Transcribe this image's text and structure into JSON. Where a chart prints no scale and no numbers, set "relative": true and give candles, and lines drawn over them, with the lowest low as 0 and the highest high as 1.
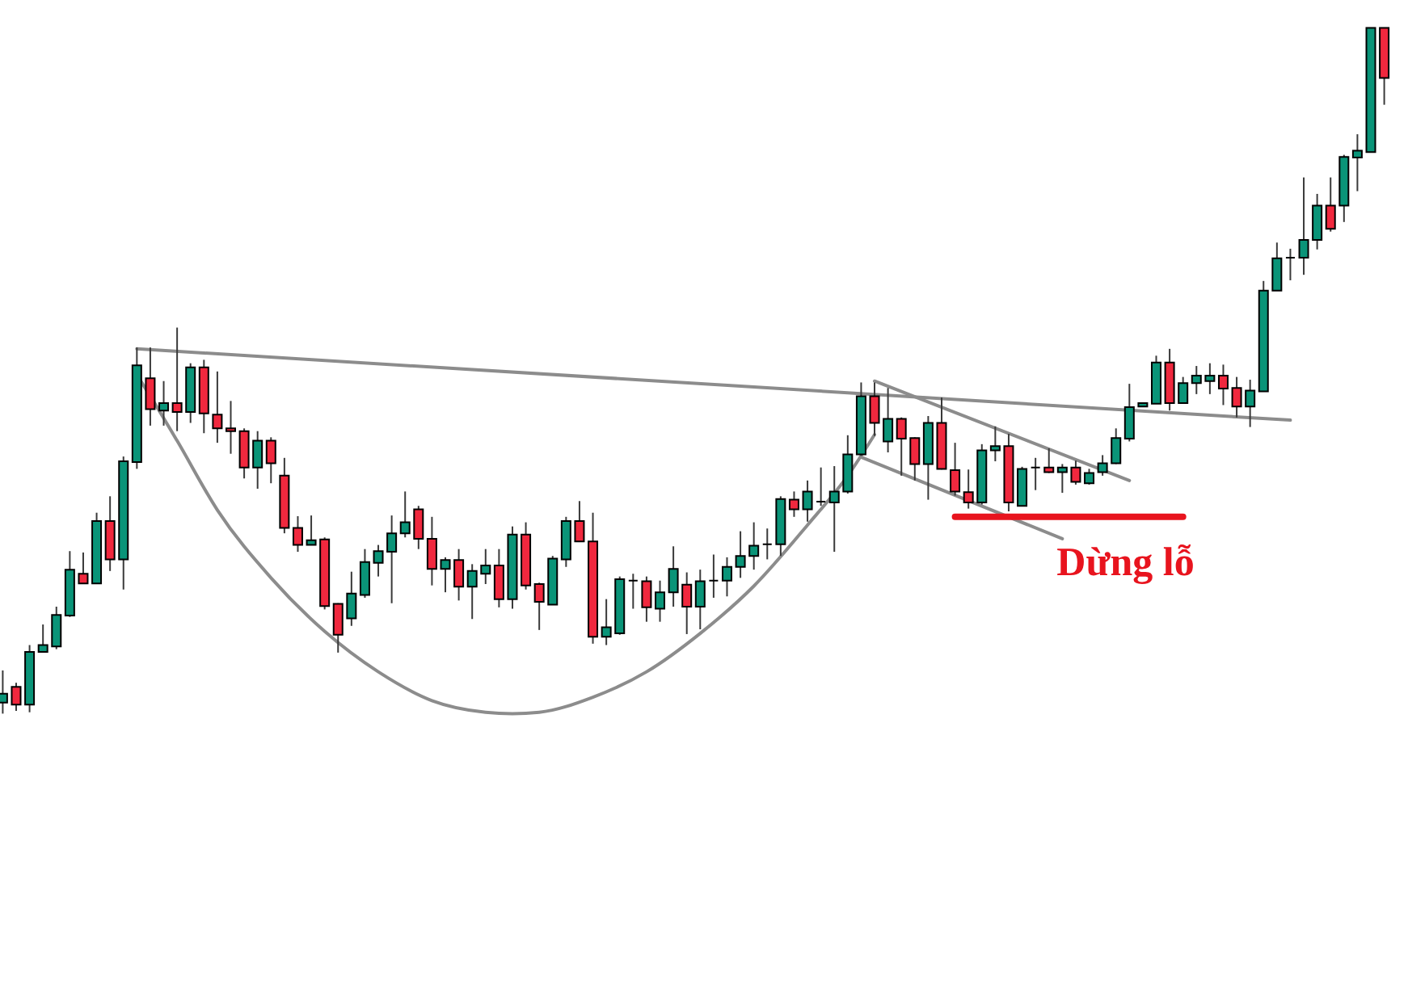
{
  "chart_data": {
    "type": "candlestick",
    "relative": true,
    "tick_labels": false,
    "categories": [
      null,
      null,
      null,
      null,
      null,
      null,
      null,
      null,
      null,
      null,
      null,
      null,
      null,
      null,
      null,
      null,
      null,
      null,
      null,
      null,
      null,
      null,
      null,
      null,
      null,
      null,
      null,
      null,
      null,
      null,
      null,
      null,
      null,
      null,
      null,
      null,
      null,
      null,
      null,
      null,
      null,
      null,
      null,
      null,
      null,
      null,
      null,
      null,
      null,
      null,
      null,
      null,
      null,
      null,
      null,
      null,
      null,
      null,
      null,
      null,
      null,
      null,
      null,
      null,
      null,
      null,
      null,
      null,
      null,
      null,
      null,
      null,
      null,
      null,
      null,
      null,
      null,
      null,
      null,
      null,
      null,
      null,
      null,
      null,
      null,
      null,
      null,
      null,
      null,
      null,
      null,
      null,
      null,
      null,
      null,
      null,
      null,
      null,
      null,
      null,
      null,
      null,
      null,
      null
    ],
    "ohlc": [
      [
        0.016,
        0.063,
        0,
        0.029
      ],
      [
        0.039,
        0.045,
        0.004,
        0.013
      ],
      [
        0.013,
        0.1,
        0.002,
        0.09
      ],
      [
        0.09,
        0.13,
        0.089,
        0.1
      ],
      [
        0.098,
        0.156,
        0.094,
        0.144
      ],
      [
        0.143,
        0.237,
        0.141,
        0.21
      ],
      [
        0.204,
        0.235,
        0.19,
        0.19
      ],
      [
        0.19,
        0.293,
        0.19,
        0.281
      ],
      [
        0.281,
        0.317,
        0.208,
        0.225
      ],
      [
        0.225,
        0.375,
        0.181,
        0.368
      ],
      [
        0.367,
        0.534,
        0.357,
        0.508
      ],
      [
        0.489,
        0.534,
        0.42,
        0.444
      ],
      [
        0.442,
        0.485,
        0.42,
        0.453
      ],
      [
        0.453,
        0.563,
        0.412,
        0.44
      ],
      [
        0.44,
        0.511,
        0.424,
        0.505
      ],
      [
        0.505,
        0.516,
        0.409,
        0.438
      ],
      [
        0.436,
        0.499,
        0.395,
        0.416
      ],
      [
        0.416,
        0.456,
        0.379,
        0.412
      ],
      [
        0.412,
        0.416,
        0.343,
        0.359
      ],
      [
        0.359,
        0.412,
        0.328,
        0.398
      ],
      [
        0.398,
        0.403,
        0.336,
        0.365
      ],
      [
        0.347,
        0.373,
        0.263,
        0.271
      ],
      [
        0.271,
        0.288,
        0.236,
        0.246
      ],
      [
        0.246,
        0.289,
        0.246,
        0.253
      ],
      [
        0.254,
        0.257,
        0.152,
        0.157
      ],
      [
        0.16,
        0.161,
        0.089,
        0.115
      ],
      [
        0.139,
        0.207,
        0.128,
        0.175
      ],
      [
        0.173,
        0.24,
        0.169,
        0.221
      ],
      [
        0.22,
        0.246,
        0.2,
        0.237
      ],
      [
        0.236,
        0.289,
        0.161,
        0.263
      ],
      [
        0.263,
        0.324,
        0.257,
        0.279
      ],
      [
        0.298,
        0.303,
        0.24,
        0.255
      ],
      [
        0.255,
        0.287,
        0.187,
        0.211
      ],
      [
        0.211,
        0.228,
        0.177,
        0.224
      ],
      [
        0.224,
        0.24,
        0.165,
        0.185
      ],
      [
        0.185,
        0.218,
        0.138,
        0.208
      ],
      [
        0.204,
        0.24,
        0.189,
        0.216
      ],
      [
        0.216,
        0.24,
        0.155,
        0.167
      ],
      [
        0.167,
        0.273,
        0.153,
        0.261
      ],
      [
        0.261,
        0.279,
        0.181,
        0.187
      ],
      [
        0.189,
        0.191,
        0.122,
        0.163
      ],
      [
        0.159,
        0.23,
        0.159,
        0.226
      ],
      [
        0.225,
        0.287,
        0.214,
        0.281
      ],
      [
        0.281,
        0.31,
        0.251,
        0.251
      ],
      [
        0.251,
        0.293,
        0.102,
        0.112
      ],
      [
        0.112,
        0.167,
        0.1,
        0.126
      ],
      [
        0.117,
        0.2,
        0.115,
        0.196
      ],
      [
        0.194,
        0.204,
        0.153,
        0.194
      ],
      [
        0.193,
        0.2,
        0.134,
        0.155
      ],
      [
        0.153,
        0.194,
        0.134,
        0.177
      ],
      [
        0.177,
        0.244,
        0.156,
        0.211
      ],
      [
        0.188,
        0.206,
        0.116,
        0.156
      ],
      [
        0.156,
        0.21,
        0.123,
        0.193
      ],
      [
        0.194,
        0.232,
        0.169,
        0.194
      ],
      [
        0.194,
        0.228,
        0.171,
        0.214
      ],
      [
        0.214,
        0.266,
        0.198,
        0.23
      ],
      [
        0.23,
        0.279,
        0.21,
        0.245
      ],
      [
        0.247,
        0.27,
        0.225,
        0.247
      ],
      [
        0.247,
        0.317,
        0.23,
        0.313
      ],
      [
        0.312,
        0.324,
        0.287,
        0.298
      ],
      [
        0.298,
        0.34,
        0.28,
        0.324
      ],
      [
        0.309,
        0.359,
        0.303,
        0.309
      ],
      [
        0.308,
        0.361,
        0.236,
        0.324
      ],
      [
        0.324,
        0.406,
        0.321,
        0.378
      ],
      [
        0.378,
        0.483,
        0.376,
        0.463
      ],
      [
        0.463,
        0.483,
        0.405,
        0.424
      ],
      [
        0.397,
        0.475,
        0.381,
        0.43
      ],
      [
        0.43,
        0.432,
        0.347,
        0.401
      ],
      [
        0.402,
        0.403,
        0.34,
        0.364
      ],
      [
        0.364,
        0.434,
        0.312,
        0.424
      ],
      [
        0.424,
        0.461,
        0.356,
        0.357
      ],
      [
        0.355,
        0.395,
        0.318,
        0.324
      ],
      [
        0.323,
        0.356,
        0.299,
        0.308
      ],
      [
        0.308,
        0.393,
        0.305,
        0.384
      ],
      [
        0.384,
        0.419,
        0.368,
        0.39
      ],
      [
        0.39,
        0.408,
        0.295,
        0.308
      ],
      [
        0.303,
        0.36,
        0.303,
        0.357
      ],
      [
        0.359,
        0.373,
        0.326,
        0.359
      ],
      [
        0.359,
        0.387,
        0.351,
        0.352
      ],
      [
        0.352,
        0.364,
        0.322,
        0.359
      ],
      [
        0.359,
        0.369,
        0.334,
        0.338
      ],
      [
        0.336,
        0.357,
        0.334,
        0.351
      ],
      [
        0.352,
        0.377,
        0.347,
        0.365
      ],
      [
        0.365,
        0.416,
        0.364,
        0.402
      ],
      [
        0.401,
        0.481,
        0.397,
        0.447
      ],
      [
        0.448,
        0.453,
        0.448,
        0.453
      ],
      [
        0.452,
        0.522,
        0.452,
        0.512
      ],
      [
        0.512,
        0.532,
        0.442,
        0.453
      ],
      [
        0.453,
        0.491,
        0.452,
        0.482
      ],
      [
        0.482,
        0.507,
        0.466,
        0.493
      ],
      [
        0.485,
        0.511,
        0.466,
        0.493
      ],
      [
        0.493,
        0.509,
        0.45,
        0.474
      ],
      [
        0.475,
        0.491,
        0.432,
        0.448
      ],
      [
        0.448,
        0.487,
        0.418,
        0.471
      ],
      [
        0.47,
        0.631,
        0.47,
        0.617
      ],
      [
        0.617,
        0.687,
        0.617,
        0.664
      ],
      [
        0.665,
        0.678,
        0.632,
        0.665
      ],
      [
        0.665,
        0.782,
        0.64,
        0.691
      ],
      [
        0.691,
        0.758,
        0.677,
        0.741
      ],
      [
        0.741,
        0.782,
        0.703,
        0.707
      ],
      [
        0.741,
        0.815,
        0.717,
        0.812
      ],
      [
        0.811,
        0.845,
        0.762,
        0.821
      ],
      [
        0.819,
        1,
        0.819,
        1
      ],
      [
        1,
        1,
        0.888,
        0.927
      ]
    ],
    "colors": [
      "#0a9478",
      "#f0283e",
      "#0a9478",
      "#0a9478",
      "#0a9478",
      "#0a9478",
      "#f0283e",
      "#0a9478",
      "#f0283e",
      "#0a9478",
      "#0a9478",
      "#f0283e",
      "#0a9478",
      "#f0283e",
      "#0a9478",
      "#f0283e",
      "#f0283e",
      "#f0283e",
      "#f0283e",
      "#0a9478",
      "#f0283e",
      "#f0283e",
      "#f0283e",
      "#0a9478",
      "#f0283e",
      "#f0283e",
      "#0a9478",
      "#0a9478",
      "#0a9478",
      "#0a9478",
      "#0a9478",
      "#f0283e",
      "#f0283e",
      "#0a9478",
      "#f0283e",
      "#0a9478",
      "#0a9478",
      "#f0283e",
      "#0a9478",
      "#f0283e",
      "#f0283e",
      "#0a9478",
      "#0a9478",
      "#f0283e",
      "#f0283e",
      "#0a9478",
      "#0a9478",
      "#000000",
      "#f0283e",
      "#0a9478",
      "#0a9478",
      "#f0283e",
      "#0a9478",
      "#000000",
      "#0a9478",
      "#0a9478",
      "#0a9478",
      "#000000",
      "#0a9478",
      "#f0283e",
      "#0a9478",
      "#000000",
      "#0a9478",
      "#0a9478",
      "#0a9478",
      "#f0283e",
      "#0a9478",
      "#f0283e",
      "#f0283e",
      "#0a9478",
      "#f0283e",
      "#f0283e",
      "#f0283e",
      "#0a9478",
      "#0a9478",
      "#f0283e",
      "#0a9478",
      "#000000",
      "#f0283e",
      "#0a9478",
      "#f0283e",
      "#0a9478",
      "#0a9478",
      "#0a9478",
      "#0a9478",
      "#0a9478",
      "#0a9478",
      "#f0283e",
      "#0a9478",
      "#0a9478",
      "#0a9478",
      "#f0283e",
      "#f0283e",
      "#0a9478",
      "#0a9478",
      "#0a9478",
      "#000000",
      "#0a9478",
      "#0a9478",
      "#f0283e",
      "#0a9478",
      "#0a9478",
      "#0a9478",
      "#f0283e"
    ],
    "series": [
      {
        "type": "line",
        "color": "#8c8c8c",
        "values": [
          null,
          null,
          null,
          null,
          null,
          null,
          null,
          null,
          null,
          null,
          0.532,
          null,
          null,
          null,
          null,
          null,
          null,
          null,
          null,
          null,
          null,
          null,
          null,
          null,
          null,
          null,
          null,
          null,
          null,
          null,
          null,
          null,
          null,
          null,
          null,
          null,
          null,
          null,
          null,
          null,
          null,
          null,
          null,
          null,
          null,
          null,
          null,
          null,
          null,
          null,
          null,
          null,
          null,
          null,
          null,
          null,
          null,
          null,
          null,
          null,
          null,
          null,
          null,
          null,
          null,
          null,
          null,
          null,
          null,
          null,
          null,
          null,
          null,
          null,
          null,
          null,
          null,
          null,
          null,
          null,
          null,
          null,
          null,
          null,
          null,
          null,
          null,
          null,
          null,
          null,
          null,
          null,
          null,
          null,
          null,
          null,
          0.428,
          null,
          null,
          null,
          null,
          null,
          null,
          null
        ]
      },
      {
        "type": "line",
        "color": "#8c8c8c",
        "values": [
          null,
          null,
          null,
          null,
          null,
          null,
          null,
          null,
          null,
          null,
          0.494,
          0.463,
          null,
          0.398,
          null,
          null,
          0.297,
          null,
          null,
          null,
          0.198,
          null,
          null,
          null,
          0.12,
          null,
          null,
          null,
          0.061,
          null,
          null,
          null,
          0.019,
          null,
          null,
          null,
          0.002,
          null,
          0,
          null,
          0.002,
          null,
          null,
          null,
          0.024,
          null,
          null,
          null,
          0.061,
          null,
          null,
          null,
          0.117,
          null,
          null,
          null,
          0.186,
          null,
          null,
          null,
          0.275,
          null,
          null,
          0.347,
          null,
          0.407,
          null,
          null,
          null,
          null,
          null,
          null,
          null,
          null,
          null,
          null,
          null,
          null,
          null,
          null,
          null,
          null,
          null,
          null,
          null,
          null,
          null,
          null,
          null,
          null,
          null,
          null,
          null,
          null,
          null,
          null,
          null,
          null,
          null,
          null,
          null,
          null,
          null,
          null
        ]
      },
      {
        "type": "line",
        "color": "#8c8c8c",
        "values": [
          null,
          null,
          null,
          null,
          null,
          null,
          null,
          null,
          null,
          null,
          null,
          null,
          null,
          null,
          null,
          null,
          null,
          null,
          null,
          null,
          null,
          null,
          null,
          null,
          null,
          null,
          null,
          null,
          null,
          null,
          null,
          null,
          null,
          null,
          null,
          null,
          null,
          null,
          null,
          null,
          null,
          null,
          null,
          null,
          null,
          null,
          null,
          null,
          null,
          null,
          null,
          null,
          null,
          null,
          null,
          null,
          null,
          null,
          null,
          null,
          null,
          null,
          null,
          null,
          null,
          0.485,
          null,
          null,
          null,
          null,
          null,
          null,
          null,
          null,
          null,
          null,
          null,
          null,
          null,
          null,
          null,
          null,
          null,
          null,
          0.34,
          null,
          null,
          null,
          null,
          null,
          null,
          null,
          null,
          null,
          null,
          null,
          null,
          null,
          null,
          null,
          null,
          null,
          null,
          null
        ]
      },
      {
        "type": "line",
        "color": "#8c8c8c",
        "values": [
          null,
          null,
          null,
          null,
          null,
          null,
          null,
          null,
          null,
          null,
          null,
          null,
          null,
          null,
          null,
          null,
          null,
          null,
          null,
          null,
          null,
          null,
          null,
          null,
          null,
          null,
          null,
          null,
          null,
          null,
          null,
          null,
          null,
          null,
          null,
          null,
          null,
          null,
          null,
          null,
          null,
          null,
          null,
          null,
          null,
          null,
          null,
          null,
          null,
          null,
          null,
          null,
          null,
          null,
          null,
          null,
          null,
          null,
          null,
          null,
          null,
          null,
          null,
          null,
          0.374,
          null,
          null,
          null,
          null,
          null,
          null,
          null,
          null,
          null,
          null,
          null,
          null,
          null,
          null,
          0.255,
          null,
          null,
          null,
          null,
          null,
          null,
          null,
          null,
          null,
          null,
          null,
          null,
          null,
          null,
          null,
          null,
          null,
          null,
          null,
          null,
          null,
          null,
          null,
          null
        ]
      },
      {
        "type": "line",
        "name": "Dừng lỗ",
        "color": "#e8141e",
        "values": [
          null,
          null,
          null,
          null,
          null,
          null,
          null,
          null,
          null,
          null,
          null,
          null,
          null,
          null,
          null,
          null,
          null,
          null,
          null,
          null,
          null,
          null,
          null,
          null,
          null,
          null,
          null,
          null,
          null,
          null,
          null,
          null,
          null,
          null,
          null,
          null,
          null,
          null,
          null,
          null,
          null,
          null,
          null,
          null,
          null,
          null,
          null,
          null,
          null,
          null,
          null,
          null,
          null,
          null,
          null,
          null,
          null,
          null,
          null,
          null,
          null,
          null,
          null,
          null,
          null,
          null,
          null,
          null,
          null,
          null,
          null,
          0.287,
          null,
          null,
          null,
          null,
          null,
          null,
          null,
          null,
          null,
          null,
          null,
          null,
          null,
          null,
          null,
          null,
          0.287,
          null,
          null,
          null,
          null,
          null,
          null,
          null,
          null,
          null,
          null,
          null,
          null,
          null,
          null,
          null
        ]
      }
    ]
  }
}
